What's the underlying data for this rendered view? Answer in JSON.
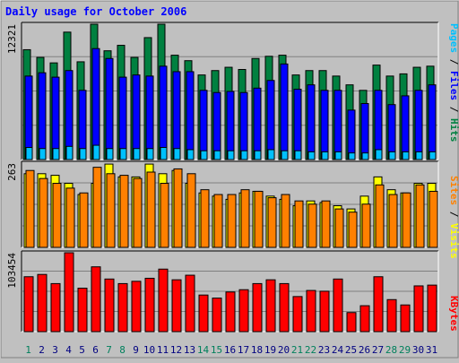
{
  "chart_data": {
    "type": "bar",
    "title": "Daily usage for October 2006",
    "categories": [
      "1",
      "2",
      "3",
      "4",
      "5",
      "6",
      "7",
      "8",
      "9",
      "10",
      "11",
      "12",
      "13",
      "14",
      "15",
      "16",
      "17",
      "18",
      "19",
      "20",
      "21",
      "22",
      "23",
      "24",
      "25",
      "26",
      "27",
      "28",
      "29",
      "30",
      "31"
    ],
    "weekend_days": [
      "1",
      "7",
      "8",
      "14",
      "15",
      "21",
      "22",
      "28",
      "29"
    ],
    "panels": [
      {
        "id": "hits_files_pages",
        "ymax_label": "12321",
        "ylim": [
          0,
          12321
        ],
        "series": [
          {
            "name": "Hits",
            "color": "#008040",
            "values": [
              10000,
              9300,
              8800,
              11600,
              8900,
              12321,
              9900,
              10400,
              9300,
              11100,
              12321,
              9500,
              9000,
              7700,
              8100,
              8400,
              8200,
              9200,
              9400,
              9500,
              7700,
              8100,
              8100,
              7600,
              6800,
              6300,
              8600,
              7600,
              7800,
              8400,
              8500
            ]
          },
          {
            "name": "Files",
            "color": "#0000ff",
            "values": [
              7600,
              7900,
              7500,
              8100,
              6300,
              10100,
              9200,
              7500,
              7700,
              7600,
              8500,
              8000,
              8000,
              6300,
              6100,
              6200,
              6100,
              6500,
              7200,
              8700,
              6400,
              6800,
              6300,
              6300,
              4500,
              5100,
              6300,
              5000,
              5800,
              6300,
              6800
            ]
          },
          {
            "name": "Pages",
            "color": "#00c0ff",
            "values": [
              1100,
              1000,
              1000,
              1200,
              1000,
              1300,
              1000,
              1000,
              1000,
              1000,
              1100,
              1000,
              900,
              800,
              800,
              800,
              800,
              800,
              900,
              800,
              800,
              700,
              700,
              700,
              600,
              600,
              900,
              700,
              700,
              700,
              700
            ]
          }
        ]
      },
      {
        "id": "visits_sites",
        "ymax_label": "263",
        "ylim": [
          0,
          263
        ],
        "series": [
          {
            "name": "Visits",
            "color": "#ffff00",
            "values": [
              230,
              230,
              225,
              200,
              165,
              200,
              260,
              220,
              220,
              260,
              230,
              240,
              200,
              170,
              160,
              150,
              170,
              175,
              160,
              150,
              130,
              145,
              140,
              130,
              120,
              160,
              220,
              180,
              170,
              200,
              200
            ]
          },
          {
            "name": "Sites",
            "color": "#ff8000",
            "values": [
              240,
              215,
              200,
              185,
              170,
              250,
              230,
              225,
              215,
              235,
              200,
              245,
              230,
              180,
              165,
              165,
              180,
              175,
              155,
              165,
              145,
              135,
              145,
              120,
              110,
              135,
              195,
              165,
              170,
              195,
              175
            ]
          }
        ]
      },
      {
        "id": "kbytes",
        "ymax_label": "103454",
        "ylim": [
          0,
          103454
        ],
        "series": [
          {
            "name": "KBytes",
            "color": "#ff0000",
            "values": [
              72000,
              75000,
              63000,
              103454,
              57000,
              85000,
              69000,
              63000,
              66000,
              70000,
              82000,
              68000,
              74000,
              48000,
              44000,
              52000,
              55000,
              63000,
              68000,
              63000,
              46000,
              54000,
              53000,
              69000,
              25000,
              34000,
              72000,
              42000,
              35000,
              60000,
              61000
            ]
          }
        ]
      }
    ],
    "legend_separator": "/"
  }
}
